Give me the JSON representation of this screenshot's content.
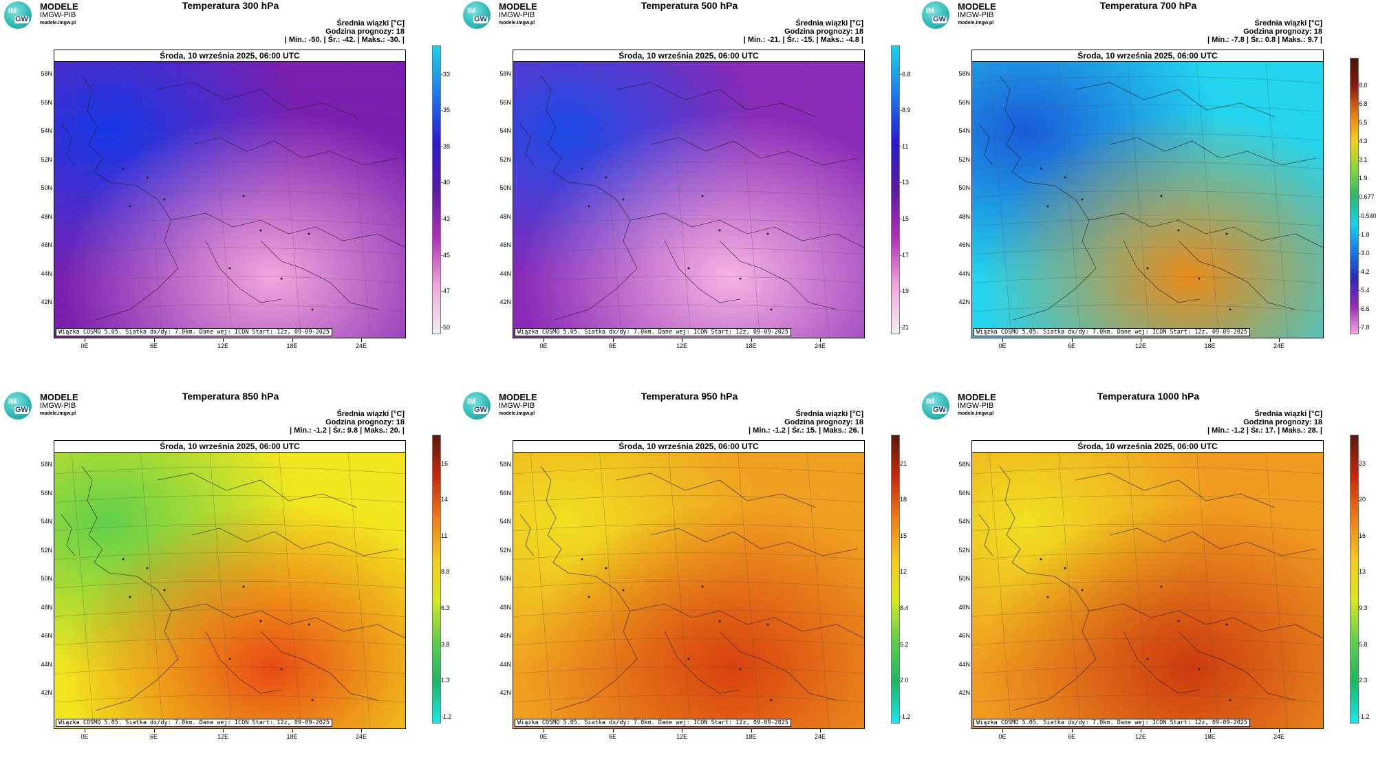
{
  "logo": {
    "name": "MODELE",
    "org": "IMGW-PIB",
    "url": "modele.imgw.pl",
    "circle_top": "IM",
    "circle_bottom": "GW"
  },
  "common": {
    "mean_label": "Średnia wiązki [°C]",
    "forecast_hour": "Godzina prognozy: 18",
    "date": "Środa, 10 września 2025, 06:00 UTC",
    "footer": "Wiązka COSMO 5.05. Siatka dx/dy: 7.0km. Dane wej: ICON Start: 12z, 09-09-2025",
    "lat_labels": [
      "58N",
      "56N",
      "54N",
      "52N",
      "50N",
      "48N",
      "46N",
      "44N",
      "42N"
    ],
    "lon_labels": [
      "0E",
      "6E",
      "12E",
      "18E",
      "24E"
    ]
  },
  "panels": [
    {
      "title": "Temperatura 300 hPa",
      "stats": "| Min.: -50. | Śr.: -42. | Maks.: -30. |",
      "colorbar": [
        "-33",
        "-35",
        "-38",
        "-40",
        "-43",
        "-45",
        "-47",
        "-50"
      ],
      "colors": {
        "low": "#1538e8",
        "mid": "#7a1fb0",
        "high": "#f3a6dc"
      }
    },
    {
      "title": "Temperatura 500 hPa",
      "stats": "| Min.: -21. | Śr.: -15. | Maks.: -4.8 |",
      "colorbar": [
        "-6.8",
        "-8.9",
        "-11",
        "-13",
        "-15",
        "-17",
        "-19",
        "-21"
      ],
      "colors": {
        "low": "#1a4ae8",
        "mid": "#8a2ab8",
        "high": "#f6b3e2"
      }
    },
    {
      "title": "Temperatura 700 hPa",
      "stats": "| Min.: -7.8 | Śr.: 0.8 | Maks.: 9.7 |",
      "colorbar": [
        "8.0",
        "6.8",
        "5.5",
        "4.3",
        "3.1",
        "1.9",
        "0.677",
        "-0.540",
        "-1.8",
        "-3.0",
        "-4.2",
        "-5.4",
        "-6.6",
        "-7.8"
      ],
      "colors": {
        "low": "#1a5ad8",
        "mid": "#22d4ee",
        "high": "#e88a1a"
      }
    },
    {
      "title": "Temperatura 850 hPa",
      "stats": "| Min.: -1.2 | Śr.: 9.8 | Maks.: 20. |",
      "colorbar": [
        "16",
        "14",
        "11",
        "8.8",
        "6.3",
        "3.8",
        "1.3",
        "-1.2"
      ],
      "colors": {
        "low": "#5fcf4a",
        "mid": "#f2e61e",
        "high": "#e84a14"
      }
    },
    {
      "title": "Temperatura 950 hPa",
      "stats": "| Min.: -1.2 | Śr.: 15. | Maks.: 26. |",
      "colorbar": [
        "21",
        "18",
        "15",
        "12",
        "8.4",
        "5.2",
        "2.0",
        "-1.2"
      ],
      "colors": {
        "low": "#f0e020",
        "mid": "#f0a020",
        "high": "#d8400e"
      }
    },
    {
      "title": "Temperatura 1000 hPa",
      "stats": "| Min.: -1.2 | Śr.: 17. | Maks.: 28. |",
      "colorbar": [
        "23",
        "20",
        "16",
        "13",
        "9.3",
        "5.8",
        "2.3",
        "-1.2"
      ],
      "colors": {
        "low": "#f0e020",
        "mid": "#f09a20",
        "high": "#cc3a0e"
      }
    }
  ],
  "colorbar_gradients": {
    "cold": [
      "#f0f0f0",
      "#f3a6dc",
      "#b02fb8",
      "#5a1aa8",
      "#2a1ad0",
      "#1a7af0",
      "#1ad4e8"
    ],
    "warm": [
      "#1ae8f0",
      "#1ab860",
      "#5fcf4a",
      "#d8e820",
      "#f5c820",
      "#f07a18",
      "#c8280a",
      "#5a1a0a"
    ],
    "mid700": [
      "#f4a6dc",
      "#9a2ab8",
      "#2a2ab8",
      "#1a7ae8",
      "#1ad4ee",
      "#2ab86a",
      "#8ad83a",
      "#f0d020",
      "#e87818",
      "#8a1a0a",
      "#4a140a"
    ]
  }
}
